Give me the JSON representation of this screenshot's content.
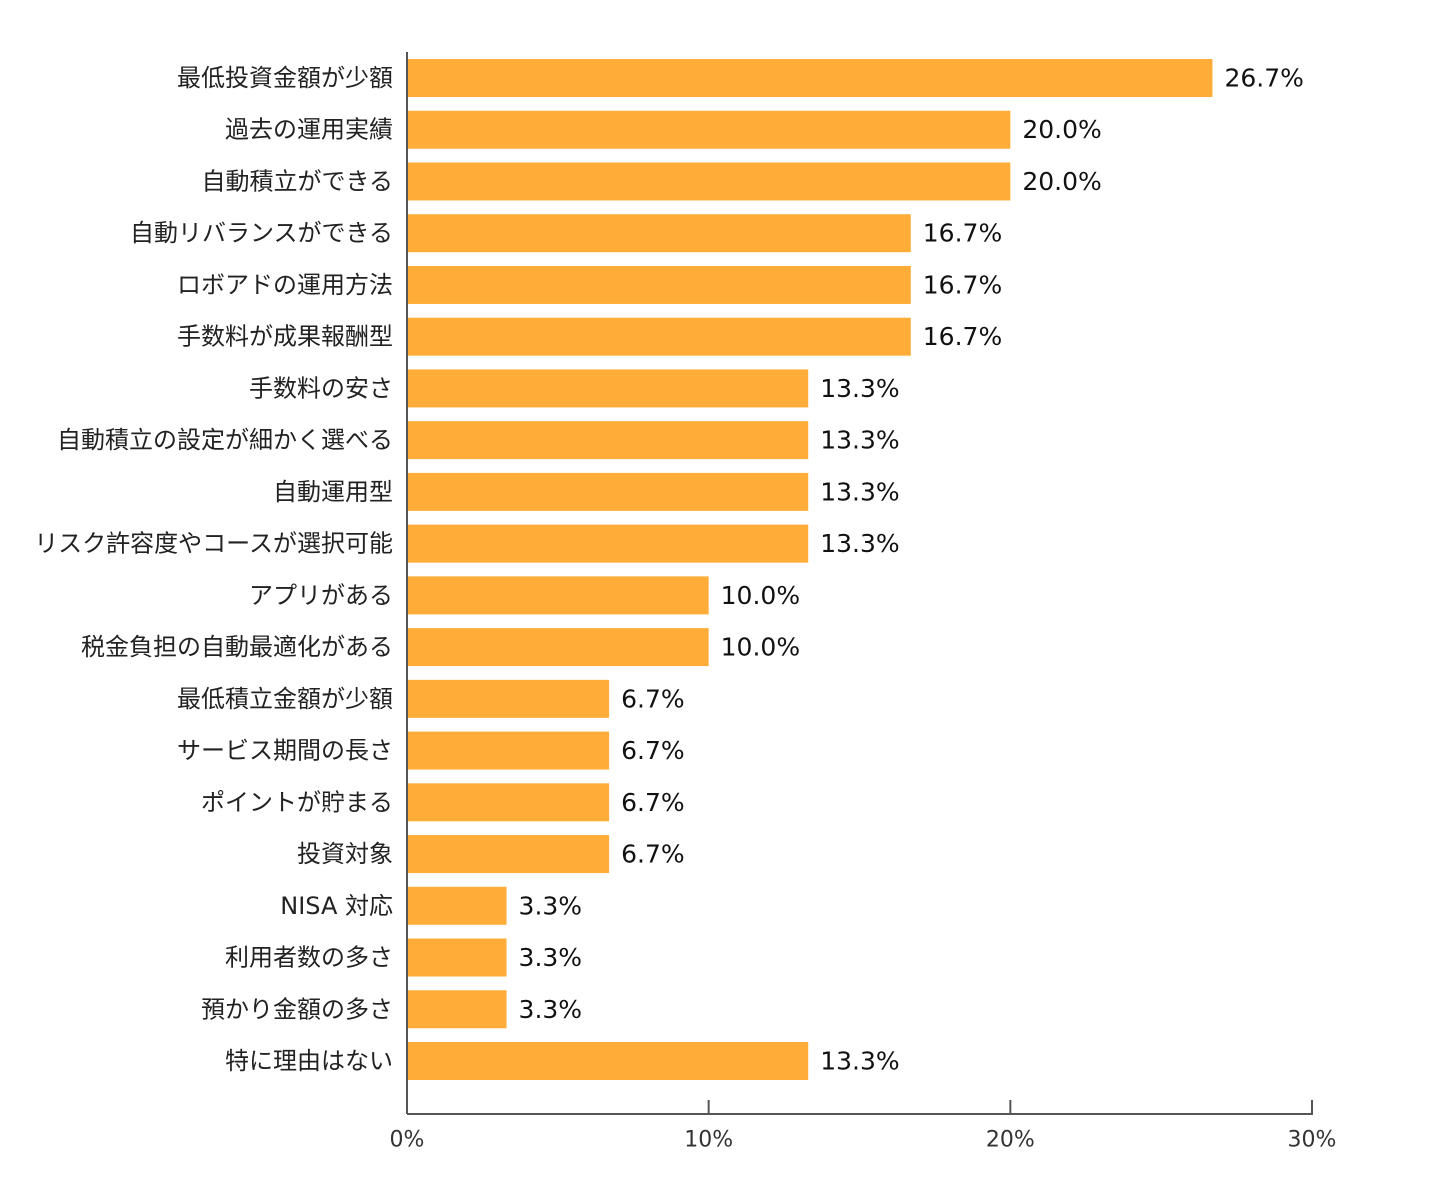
{
  "chart_data": {
    "type": "bar",
    "orientation": "horizontal",
    "categories": [
      "最低投資金額が少額",
      "過去の運用実績",
      "自動積立ができる",
      "自動リバランスができる",
      "ロボアドの運用方法",
      "手数料が成果報酬型",
      "手数料の安さ",
      "自動積立の設定が細かく選べる",
      "自動運用型",
      "リスク許容度やコースが選択可能",
      "アプリがある",
      "税金負担の自動最適化がある",
      "最低積立金額が少額",
      "サービス期間の長さ",
      "ポイントが貯まる",
      "投資対象",
      "NISA 対応",
      "利用者数の多さ",
      "預かり金額の多さ",
      "特に理由はない"
    ],
    "values": [
      26.7,
      20.0,
      20.0,
      16.7,
      16.7,
      16.7,
      13.3,
      13.3,
      13.3,
      13.3,
      10.0,
      10.0,
      6.7,
      6.7,
      6.7,
      6.7,
      3.3,
      3.3,
      3.3,
      13.3
    ],
    "value_labels": [
      "26.7%",
      "20.0%",
      "20.0%",
      "16.7%",
      "16.7%",
      "16.7%",
      "13.3%",
      "13.3%",
      "13.3%",
      "13.3%",
      "10.0%",
      "10.0%",
      "6.7%",
      "6.7%",
      "6.7%",
      "6.7%",
      "3.3%",
      "3.3%",
      "3.3%",
      "13.3%"
    ],
    "xlim": [
      0,
      30
    ],
    "x_ticks": [
      0,
      10,
      20,
      30
    ],
    "x_tick_labels": [
      "0%",
      "10%",
      "20%",
      "30%"
    ],
    "title": "",
    "xlabel": "",
    "ylabel": "",
    "grid": false,
    "legend": "none",
    "bar_color": "#FFAD38"
  }
}
